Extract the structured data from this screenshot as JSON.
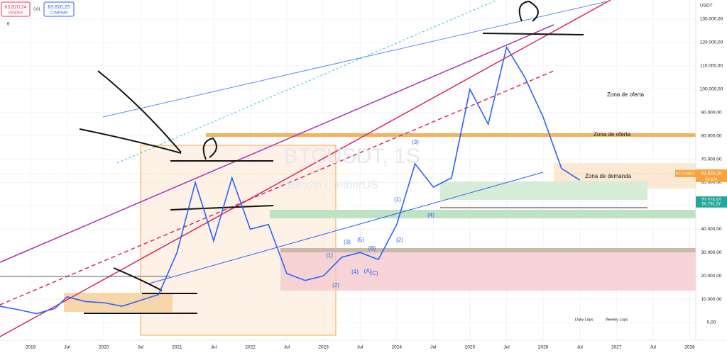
{
  "chart_data": {
    "type": "line",
    "title": "BTCUSDT, 1S",
    "subtitle": "Bitcoin / TetherUS",
    "y_axis_label": "USDT",
    "xlim": [
      "2018-08",
      "2028-02"
    ],
    "ylim": [
      0,
      130000
    ],
    "yticks": [
      {
        "value": 0,
        "label": "0,00"
      },
      {
        "value": 10000,
        "label": "10.000,00"
      },
      {
        "value": 20000,
        "label": "20.000,00"
      },
      {
        "value": 30000,
        "label": "30.000,00"
      },
      {
        "value": 40000,
        "label": "40.000,00"
      },
      {
        "value": 50000,
        "label": "50.000,00"
      },
      {
        "value": 60000,
        "label": "60.000,00"
      },
      {
        "value": 70000,
        "label": "70.000,00"
      },
      {
        "value": 80000,
        "label": "80.000,00"
      },
      {
        "value": 90000,
        "label": "90.000,00"
      },
      {
        "value": 100000,
        "label": "100.000,00"
      },
      {
        "value": 110000,
        "label": "110.000,00"
      },
      {
        "value": 120000,
        "label": "120.000,00"
      },
      {
        "value": 130000,
        "label": "130.000,00"
      }
    ],
    "xticks": [
      {
        "value": "2019-01",
        "label": "2019"
      },
      {
        "value": "2019-07",
        "label": "Jul"
      },
      {
        "value": "2020-01",
        "label": "2020"
      },
      {
        "value": "2020-07",
        "label": "Jul"
      },
      {
        "value": "2021-01",
        "label": "2021"
      },
      {
        "value": "2021-07",
        "label": "Jul"
      },
      {
        "value": "2022-01",
        "label": "2022"
      },
      {
        "value": "2022-07",
        "label": "Jul"
      },
      {
        "value": "2023-01",
        "label": "2023"
      },
      {
        "value": "2023-07",
        "label": "Jul"
      },
      {
        "value": "2024-01",
        "label": "2024"
      },
      {
        "value": "2024-07",
        "label": "Jul"
      },
      {
        "value": "2025-01",
        "label": "2025"
      },
      {
        "value": "2025-07",
        "label": "Jul"
      },
      {
        "value": "2026-01",
        "label": "2026"
      },
      {
        "value": "2026-07",
        "label": "Jul"
      },
      {
        "value": "2027-01",
        "label": "2027"
      },
      {
        "value": "2027-07",
        "label": "Jul"
      },
      {
        "value": "2028-01",
        "label": "2028"
      }
    ],
    "x": [
      "2018-08",
      "2018-11",
      "2019-02",
      "2019-05",
      "2019-07",
      "2019-10",
      "2020-01",
      "2020-04",
      "2020-07",
      "2020-10",
      "2021-01",
      "2021-04",
      "2021-07",
      "2021-10",
      "2022-01",
      "2022-04",
      "2022-07",
      "2022-10",
      "2023-01",
      "2023-04",
      "2023-07",
      "2023-10",
      "2024-01",
      "2024-04",
      "2024-07",
      "2024-10",
      "2025-01",
      "2025-04",
      "2025-07",
      "2025-10",
      "2026-01",
      "2026-04",
      "2026-07"
    ],
    "series": [
      {
        "name": "BTCUSDT",
        "color": "#2962ff",
        "values": [
          7000,
          5500,
          3800,
          6000,
          11000,
          9000,
          8500,
          7000,
          9500,
          12000,
          30000,
          60000,
          35000,
          62000,
          40000,
          42000,
          21000,
          18000,
          20000,
          28000,
          30000,
          27000,
          42000,
          68000,
          58000,
          62000,
          100000,
          85000,
          118000,
          105000,
          88000,
          66000,
          61000
        ]
      }
    ],
    "last_price": {
      "value": 63820.25,
      "label": "63.820,25",
      "symbol": "BTCUSDT",
      "countdown": "5d 12h"
    },
    "price_labels": [
      {
        "value": 52524.43,
        "label": "52.524,43"
      },
      {
        "value": 50791.37,
        "label": "50.791,37"
      }
    ],
    "annotations": [
      "Zona de oferta",
      "Zona de oferta",
      "Zona de demanda",
      "Daily Liq/s",
      "Weekly Liq/s"
    ],
    "waves": [
      "(3)",
      "(4)",
      "(1)",
      "(2)",
      "(1)",
      "(2)",
      "(3)",
      "(5)",
      "(4)",
      "(A)",
      "(B)",
      "(C)"
    ]
  },
  "header": {
    "sell_price": "63.820,24",
    "sell_label": "VENDER",
    "spread": "0,01",
    "buy_price": "63.820,25",
    "buy_label": "COMPRAR",
    "indicator_count": "6"
  }
}
